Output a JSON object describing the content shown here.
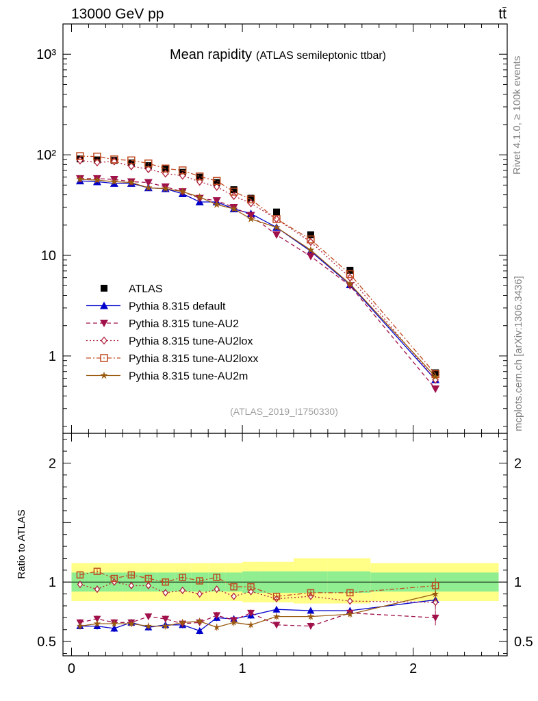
{
  "header": {
    "beam": "13000 GeV pp",
    "process": "tt̄"
  },
  "side_labels": {
    "rivet": "Rivet 4.1.0, ≥ 100k events",
    "source": "mcplots.cern.ch [arXiv:1306.3436]"
  },
  "colors": {
    "ATLAS": "#000000",
    "default": "#0000cc",
    "AU2": "#a0104a",
    "AU2lox": "#b01f3a",
    "AU2loxx": "#c04a20",
    "AU2m": "#9a5a10",
    "band_inner": "#90ee90",
    "band_outer": "#ffff88"
  },
  "chart_data": [
    {
      "type": "line",
      "title": "Mean rapidity",
      "subtitle": "(ATLAS semileptonic ttbar)",
      "analysis_tag": "(ATLAS_2019_I1750330)",
      "xlabel": "",
      "ylabel": "",
      "yscale": "log",
      "xlim": [
        -0.05,
        2.55
      ],
      "ylim": [
        0.17,
        2000
      ],
      "ytick_labels": [
        "1",
        "10",
        "10²",
        "10³"
      ],
      "legend_position": "middle-left",
      "x": [
        0.05,
        0.15,
        0.25,
        0.35,
        0.45,
        0.55,
        0.65,
        0.75,
        0.85,
        0.95,
        1.05,
        1.2,
        1.4,
        1.63,
        2.13
      ],
      "series": [
        {
          "key": "ATLAS",
          "name": "ATLAS",
          "marker": "square-filled",
          "line": "none",
          "values": [
            91,
            89,
            88,
            83,
            78,
            73,
            67,
            60,
            53,
            45,
            37,
            27,
            16,
            7.1,
            0.68
          ]
        },
        {
          "key": "default",
          "name": "Pythia 8.315 default",
          "marker": "triangle-up",
          "line": "solid",
          "values": [
            55,
            54,
            52,
            52,
            47,
            46,
            41,
            34,
            34,
            29,
            26,
            19,
            11,
            5.1,
            0.58
          ]
        },
        {
          "key": "AU2",
          "name": "Pythia 8.315 tune-AU2",
          "marker": "triangle-down",
          "line": "dashed",
          "values": [
            58,
            58,
            57,
            54,
            53,
            48,
            43,
            37,
            35,
            30,
            25,
            16,
            9.8,
            5.0,
            0.47
          ]
        },
        {
          "key": "AU2lox",
          "name": "Pythia 8.315 tune-AU2lox",
          "marker": "diamond-open",
          "line": "dotted",
          "values": [
            88,
            84,
            86,
            77,
            72,
            65,
            62,
            54,
            48,
            39,
            33,
            23,
            13.6,
            6.0,
            0.58
          ]
        },
        {
          "key": "AU2loxx",
          "name": "Pythia 8.315 tune-AU2loxx",
          "marker": "square-open",
          "line": "dashdot",
          "values": [
            97,
            96,
            90,
            88,
            82,
            73,
            70,
            61,
            55,
            43,
            36,
            23,
            14.4,
            6.5,
            0.66
          ]
        },
        {
          "key": "AU2m",
          "name": "Pythia 8.315 tune-AU2m",
          "marker": "star",
          "line": "solid",
          "values": [
            57,
            56,
            54,
            53,
            47,
            46,
            43,
            38,
            32,
            29,
            23,
            19,
            11.3,
            5.2,
            0.62
          ]
        }
      ]
    },
    {
      "type": "line",
      "title": "",
      "xlabel": "",
      "ylabel": "Ratio to ATLAS",
      "yscale": "linear",
      "xlim": [
        -0.05,
        2.55
      ],
      "ylim": [
        0.38,
        2.25
      ],
      "ytick_labels": [
        "0.5",
        "1",
        "2"
      ],
      "xtick_labels": [
        "0",
        "1",
        "2"
      ],
      "band_edges": [
        0.0,
        0.1,
        0.2,
        0.3,
        0.4,
        0.5,
        0.6,
        0.7,
        0.8,
        0.9,
        1.0,
        1.1,
        1.3,
        1.5,
        1.75,
        2.5
      ],
      "band_inner": {
        "lo": [
          0.92,
          0.92,
          0.92,
          0.92,
          0.92,
          0.92,
          0.92,
          0.92,
          0.92,
          0.92,
          0.91,
          0.91,
          0.91,
          0.91,
          0.92
        ],
        "hi": [
          1.08,
          1.08,
          1.08,
          1.08,
          1.08,
          1.08,
          1.08,
          1.08,
          1.08,
          1.08,
          1.09,
          1.09,
          1.09,
          1.09,
          1.08
        ]
      },
      "band_outer": {
        "lo": [
          0.84,
          0.84,
          0.84,
          0.84,
          0.84,
          0.84,
          0.84,
          0.84,
          0.84,
          0.84,
          0.83,
          0.83,
          0.82,
          0.82,
          0.84
        ],
        "hi": [
          1.16,
          1.16,
          1.16,
          1.16,
          1.16,
          1.16,
          1.16,
          1.16,
          1.16,
          1.16,
          1.17,
          1.17,
          1.2,
          1.2,
          1.16
        ]
      },
      "x": [
        0.05,
        0.15,
        0.25,
        0.35,
        0.45,
        0.55,
        0.65,
        0.75,
        0.85,
        0.95,
        1.05,
        1.2,
        1.4,
        1.63,
        2.13
      ],
      "series": [
        {
          "key": "default",
          "name": "Pythia 8.315 default",
          "values": [
            0.63,
            0.63,
            0.61,
            0.66,
            0.62,
            0.64,
            0.64,
            0.59,
            0.7,
            0.69,
            0.72,
            0.77,
            0.76,
            0.76,
            0.85
          ]
        },
        {
          "key": "AU2",
          "name": "Pythia 8.315 tune-AU2",
          "values": [
            0.66,
            0.69,
            0.66,
            0.66,
            0.71,
            0.69,
            0.65,
            0.66,
            0.72,
            0.68,
            0.74,
            0.64,
            0.63,
            0.74,
            0.7
          ]
        },
        {
          "key": "AU2lox",
          "name": "Pythia 8.315 tune-AU2lox",
          "values": [
            0.98,
            0.94,
            1.0,
            0.97,
            0.97,
            0.91,
            0.93,
            0.9,
            0.94,
            0.88,
            0.92,
            0.86,
            0.88,
            0.84,
            0.83
          ]
        },
        {
          "key": "AU2loxx",
          "name": "Pythia 8.315 tune-AU2loxx",
          "values": [
            1.06,
            1.09,
            1.03,
            1.06,
            1.03,
            1.0,
            1.04,
            1.01,
            1.04,
            0.96,
            0.96,
            0.88,
            0.91,
            0.91,
            0.97
          ]
        },
        {
          "key": "AU2m",
          "name": "Pythia 8.315 tune-AU2m",
          "values": [
            0.63,
            0.65,
            0.65,
            0.65,
            0.63,
            0.63,
            0.66,
            0.67,
            0.62,
            0.66,
            0.64,
            0.71,
            0.71,
            0.73,
            0.9
          ]
        }
      ]
    }
  ]
}
